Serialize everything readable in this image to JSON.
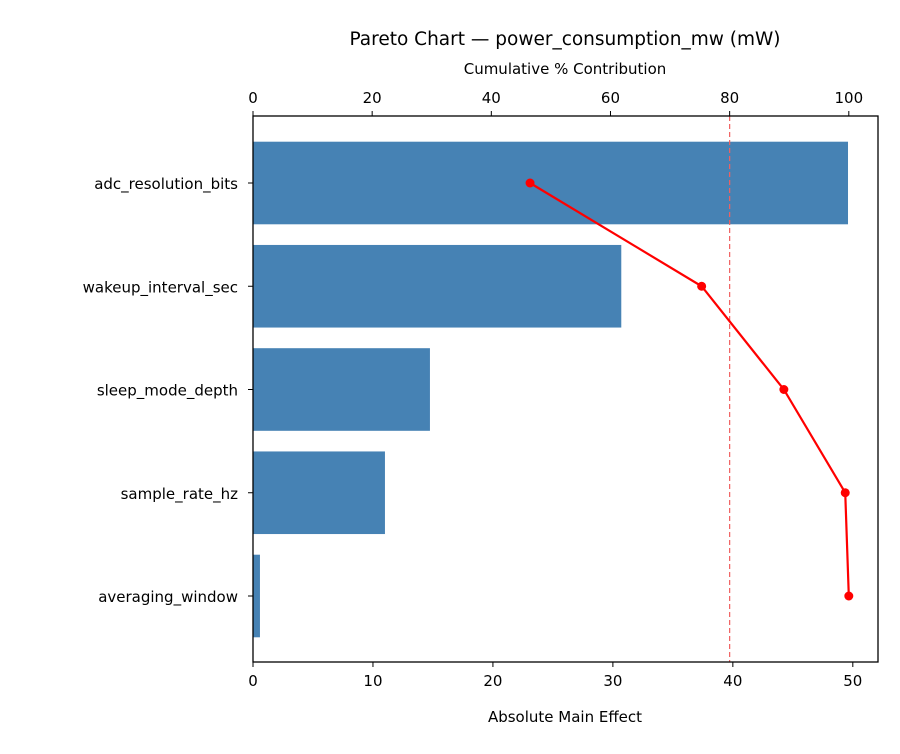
{
  "chart_data": {
    "type": "bar",
    "orientation": "horizontal",
    "title": "Pareto Chart — power_consumption_mw (mW)",
    "xlabel": "Absolute Main Effect",
    "x2label": "Cumulative % Contribution",
    "categories": [
      "adc_resolution_bits",
      "wakeup_interval_sec",
      "sleep_mode_depth",
      "sample_rate_hz",
      "averaging_window"
    ],
    "values": [
      49.6,
      30.7,
      14.75,
      11.0,
      0.58
    ],
    "cumulative_percent": [
      46.5,
      75.3,
      89.1,
      99.4,
      100.0
    ],
    "xlim": [
      0,
      52.1
    ],
    "x2lim": [
      0,
      104.9
    ],
    "xticks": [
      "0",
      "10",
      "20",
      "30",
      "40",
      "50"
    ],
    "x2ticks": [
      "0",
      "20",
      "40",
      "60",
      "80",
      "100"
    ],
    "threshold_percent": 80,
    "grid": false,
    "colors": {
      "bar": "#4682b4",
      "cumulative": "#ff0000",
      "threshold": "#f06060"
    }
  }
}
